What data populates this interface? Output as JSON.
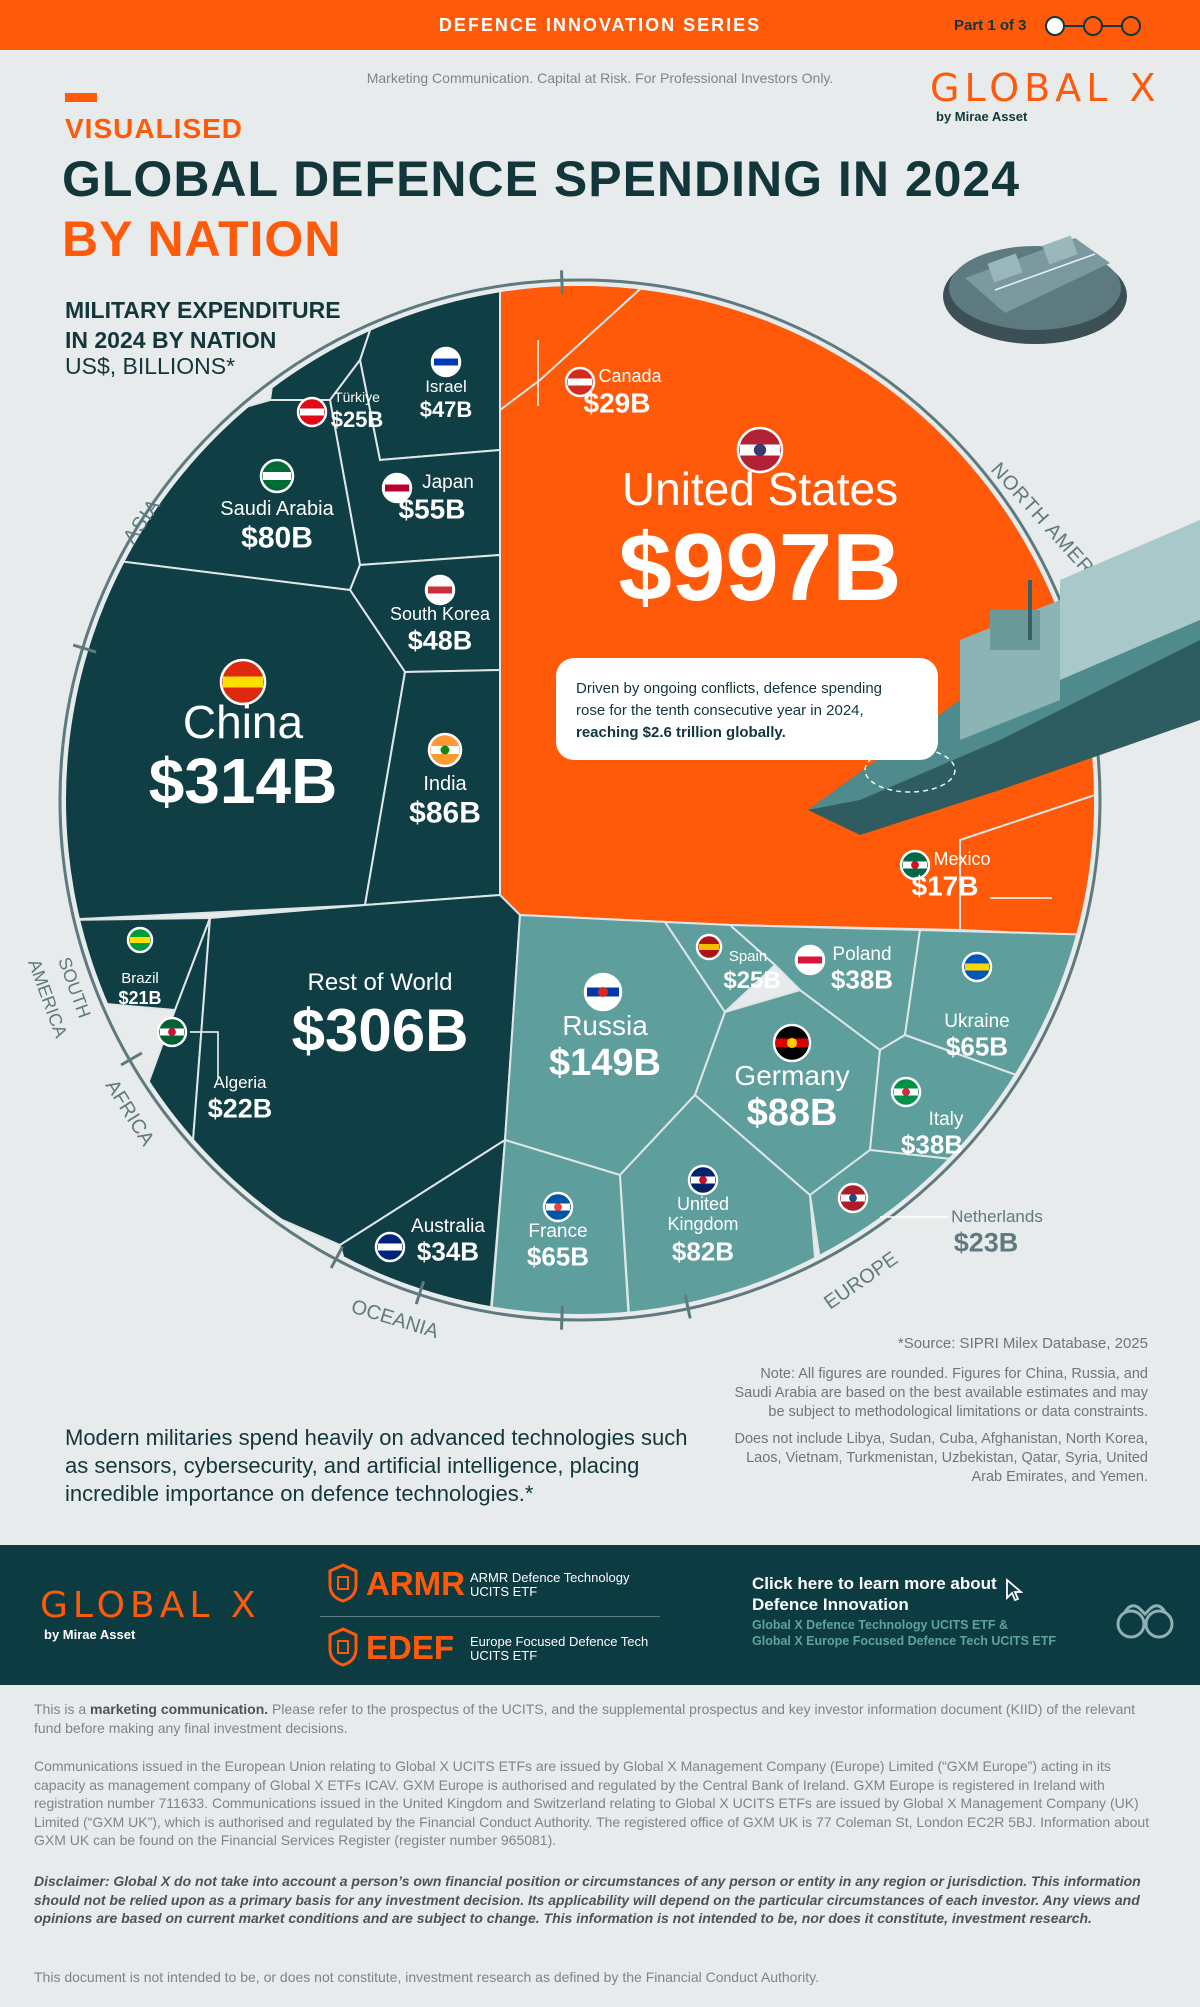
{
  "header": {
    "series": "DEFENCE INNOVATION SERIES",
    "part": "Part 1 of 3",
    "compliance": "Marketing Communication. Capital at Risk. For Professional Investors Only.",
    "brand": "GLOBAL X",
    "brand_sub": "by Mirae Asset"
  },
  "titles": {
    "kicker": "VISUALISED",
    "line1": "GLOBAL DEFENCE SPENDING IN 2024",
    "line2": "BY NATION",
    "subhead1": "MILITARY EXPENDITURE",
    "subhead2": "IN 2024 BY NATION",
    "unit": "US$, BILLIONS*"
  },
  "colors": {
    "orange": "#ff5a0a",
    "dark_teal": "#0f3e44",
    "light_teal": "#5e9e9d",
    "navy": "#12363a"
  },
  "chart_data": {
    "type": "voronoi-treemap",
    "unit": "US$, billions",
    "regions": [
      "NORTH AMERICA",
      "ASIA",
      "SOUTH AMERICA",
      "AFRICA",
      "OCEANIA",
      "EUROPE"
    ],
    "series": [
      {
        "name": "United States",
        "value": 997,
        "label": "$997B",
        "region": "NORTH AMERICA"
      },
      {
        "name": "Canada",
        "value": 29,
        "label": "$29B",
        "region": "NORTH AMERICA"
      },
      {
        "name": "Mexico",
        "value": 17,
        "label": "$17B",
        "region": "NORTH AMERICA"
      },
      {
        "name": "China",
        "value": 314,
        "label": "$314B",
        "region": "ASIA"
      },
      {
        "name": "India",
        "value": 86,
        "label": "$86B",
        "region": "ASIA"
      },
      {
        "name": "Saudi Arabia",
        "value": 80,
        "label": "$80B",
        "region": "ASIA"
      },
      {
        "name": "Japan",
        "value": 55,
        "label": "$55B",
        "region": "ASIA"
      },
      {
        "name": "South Korea",
        "value": 48,
        "label": "$48B",
        "region": "ASIA"
      },
      {
        "name": "Israel",
        "value": 47,
        "label": "$47B",
        "region": "ASIA"
      },
      {
        "name": "Türkiye",
        "value": 25,
        "label": "$25B",
        "region": "ASIA"
      },
      {
        "name": "Rest of World",
        "value": 306,
        "label": "$306B",
        "region": "OTHER"
      },
      {
        "name": "Brazil",
        "value": 21,
        "label": "$21B",
        "region": "SOUTH AMERICA"
      },
      {
        "name": "Algeria",
        "value": 22,
        "label": "$22B",
        "region": "AFRICA"
      },
      {
        "name": "Australia",
        "value": 34,
        "label": "$34B",
        "region": "OCEANIA"
      },
      {
        "name": "Russia",
        "value": 149,
        "label": "$149B",
        "region": "EUROPE"
      },
      {
        "name": "Germany",
        "value": 88,
        "label": "$88B",
        "region": "EUROPE"
      },
      {
        "name": "United Kingdom",
        "value": 82,
        "label": "$82B",
        "region": "EUROPE"
      },
      {
        "name": "France",
        "value": 65,
        "label": "$65B",
        "region": "EUROPE"
      },
      {
        "name": "Ukraine",
        "value": 65,
        "label": "$65B",
        "region": "EUROPE"
      },
      {
        "name": "Poland",
        "value": 38,
        "label": "$38B",
        "region": "EUROPE"
      },
      {
        "name": "Italy",
        "value": 38,
        "label": "$38B",
        "region": "EUROPE"
      },
      {
        "name": "Spain",
        "value": 25,
        "label": "$25B",
        "region": "EUROPE"
      },
      {
        "name": "Netherlands",
        "value": 23,
        "label": "$23B",
        "region": "EUROPE"
      }
    ],
    "callout": {
      "line1": "Driven by ongoing conflicts, defence spending",
      "line2": "rose for the tenth consecutive year in 2024,",
      "line3": "reaching $2.6 trillion globally."
    }
  },
  "notes": {
    "source": "*Source: SIPRI Milex Database, 2025",
    "note1": "Note: All figures are rounded. Figures for China, Russia, and Saudi Arabia are based on the best available estimates and may be subject to methodological limitations or data constraints.",
    "note2": "Does not include Libya, Sudan, Cuba, Afghanistan, North Korea, Laos, Vietnam, Turkmenistan, Uzbekistan, Qatar, Syria, United Arab Emirates, and Yemen.",
    "body": "Modern militaries spend heavily on advanced technologies such as sensors, cybersecurity, and artificial intelligence, placing incredible importance on defence technologies.*"
  },
  "footer": {
    "brand": "GLOBAL X",
    "brand_sub": "by Mirae Asset",
    "fund1_ticker": "ARMR",
    "fund1_name": "ARMR Defence Technology UCITS ETF",
    "fund2_ticker": "EDEF",
    "fund2_name": "Europe Focused Defence Tech UCITS ETF",
    "learn_more": "Click here to learn more about Defence Innovation",
    "learn_sub1": "Global X Defence Technology UCITS ETF &",
    "learn_sub2": "Global X Europe Focused Defence Tech UCITS ETF"
  },
  "legal": {
    "p1_pre": "This is a ",
    "p1_bold": "marketing communication.",
    "p1_post": " Please refer to the prospectus of the UCITS, and the supplemental prospectus and key investor information document (KIID) of the relevant fund before making any final investment decisions.",
    "p2": "Communications issued in the European Union relating to Global X UCITS ETFs are issued by Global X Management Company (Europe) Limited (“GXM Europe”) acting in its capacity as management company of Global X ETFs ICAV. GXM Europe is authorised and regulated by the Central Bank of Ireland. GXM Europe is registered in Ireland with registration number 711633. Communications issued in the United Kingdom and Switzerland relating to Global X UCITS ETFs are issued by Global X Management Company (UK) Limited (“GXM UK”), which is authorised and regulated by the Financial Conduct Authority. The registered office of GXM UK is 77 Coleman St, London EC2R 5BJ. Information about GXM UK can be found on the Financial Services Register (register number 965081).",
    "p3": "Disclaimer: Global X do not take into account a person’s own financial position or circumstances of any person or entity in any region or jurisdiction. This information should not be relied upon as a primary basis for any investment decision. Its applicability will depend on the particular circumstances of each investor. Any views and opinions are based on current market conditions and are subject to change. This information is not intended to be, nor does it constitute, investment research.",
    "p4": "This document is not intended to be, or does not constitute, investment research as defined by the Financial Conduct Authority."
  }
}
